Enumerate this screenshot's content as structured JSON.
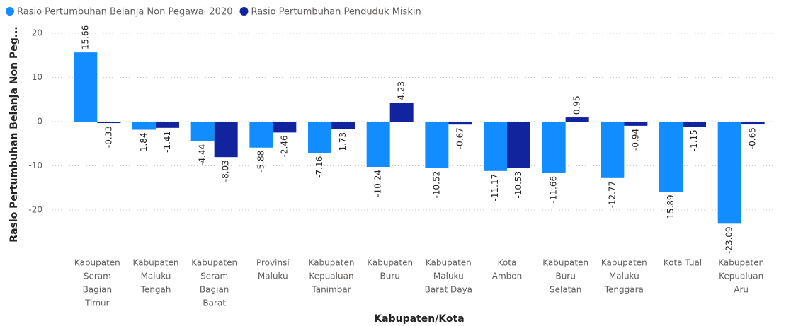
{
  "chart_data": {
    "type": "bar",
    "x_label": "Kabupaten/Kota",
    "y_label": "Rasio Pertumbuhan Belanja Non Peg...",
    "categories": [
      [
        "Kabupaten",
        "Seram",
        "Bagian",
        "Timur"
      ],
      [
        "Kabupaten",
        "Maluku",
        "Tengah"
      ],
      [
        "Kabupaten",
        "Seram",
        "Bagian",
        "Barat"
      ],
      [
        "Provinsi",
        "Maluku"
      ],
      [
        "Kabupaten",
        "Kepualuan",
        "Tanimbar"
      ],
      [
        "Kabupaten",
        "Buru"
      ],
      [
        "Kabupaten",
        "Maluku",
        "Barat Daya"
      ],
      [
        "Kota",
        "Ambon"
      ],
      [
        "Kabupaten",
        "Buru",
        "Selatan"
      ],
      [
        "Kabupaten",
        "Maluku",
        "Tenggara"
      ],
      [
        "Kota Tual"
      ],
      [
        "Kabupaten",
        "Kepualuan",
        "Aru"
      ]
    ],
    "series": [
      {
        "name": "Rasio Pertumbuhan Belanja Non Pegawai 2020",
        "color": "#118dff",
        "values": [
          15.66,
          -1.84,
          -4.44,
          -5.88,
          -7.16,
          -10.24,
          -10.52,
          -11.17,
          -11.66,
          -12.77,
          -15.89,
          -23.09
        ]
      },
      {
        "name": "Rasio Pertumbuhan Penduduk Miskin",
        "color": "#12239e",
        "values": [
          -0.33,
          -1.41,
          -8.03,
          -2.46,
          -1.73,
          4.23,
          -0.67,
          -10.53,
          0.95,
          -0.94,
          -1.15,
          -0.65
        ]
      }
    ],
    "ylim": [
      -24,
      20
    ],
    "yticks": [
      -20,
      -10,
      0,
      10,
      20
    ],
    "grid": true
  }
}
